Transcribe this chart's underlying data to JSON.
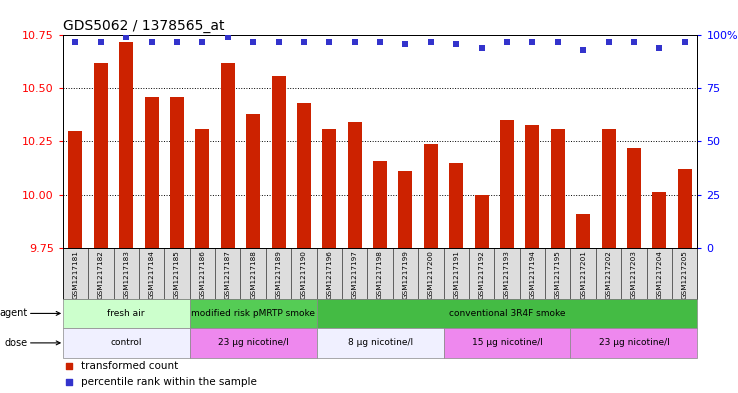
{
  "title": "GDS5062 / 1378565_at",
  "samples": [
    "GSM1217181",
    "GSM1217182",
    "GSM1217183",
    "GSM1217184",
    "GSM1217185",
    "GSM1217186",
    "GSM1217187",
    "GSM1217188",
    "GSM1217189",
    "GSM1217190",
    "GSM1217196",
    "GSM1217197",
    "GSM1217198",
    "GSM1217199",
    "GSM1217200",
    "GSM1217191",
    "GSM1217192",
    "GSM1217193",
    "GSM1217194",
    "GSM1217195",
    "GSM1217201",
    "GSM1217202",
    "GSM1217203",
    "GSM1217204",
    "GSM1217205"
  ],
  "transformed_counts": [
    10.3,
    10.62,
    10.72,
    10.46,
    10.46,
    10.31,
    10.62,
    10.38,
    10.56,
    10.43,
    10.31,
    10.34,
    10.16,
    10.11,
    10.24,
    10.15,
    10.0,
    10.35,
    10.33,
    10.31,
    9.91,
    10.31,
    10.22,
    10.01,
    10.12
  ],
  "percentile_ranks": [
    97,
    97,
    99,
    97,
    97,
    97,
    99,
    97,
    97,
    97,
    97,
    97,
    97,
    96,
    97,
    96,
    94,
    97,
    97,
    97,
    93,
    97,
    97,
    94,
    97
  ],
  "ylim_left": [
    9.75,
    10.75
  ],
  "ylim_right": [
    0,
    100
  ],
  "yticks_left": [
    9.75,
    10.0,
    10.25,
    10.5,
    10.75
  ],
  "yticks_right": [
    0,
    25,
    50,
    75,
    100
  ],
  "ytick_labels_right": [
    "0",
    "25",
    "50",
    "75",
    "100%"
  ],
  "bar_color": "#cc2200",
  "dot_color": "#3333cc",
  "agent_groups": [
    {
      "label": "fresh air",
      "start": 0,
      "end": 5,
      "color": "#ccffcc"
    },
    {
      "label": "modified risk pMRTP smoke",
      "start": 5,
      "end": 10,
      "color": "#55cc55"
    },
    {
      "label": "conventional 3R4F smoke",
      "start": 10,
      "end": 25,
      "color": "#44bb44"
    }
  ],
  "dose_groups": [
    {
      "label": "control",
      "start": 0,
      "end": 5,
      "color": "#f0f0ff"
    },
    {
      "label": "23 μg nicotine/l",
      "start": 5,
      "end": 10,
      "color": "#ee88ee"
    },
    {
      "label": "8 μg nicotine/l",
      "start": 10,
      "end": 15,
      "color": "#f0f0ff"
    },
    {
      "label": "15 μg nicotine/l",
      "start": 15,
      "end": 20,
      "color": "#ee88ee"
    },
    {
      "label": "23 μg nicotine/l",
      "start": 20,
      "end": 25,
      "color": "#ee88ee"
    }
  ],
  "legend_items": [
    {
      "label": "transformed count",
      "color": "#cc2200"
    },
    {
      "label": "percentile rank within the sample",
      "color": "#3333cc"
    }
  ],
  "grid_color": "#000000",
  "plot_bg": "#ffffff",
  "xtick_bg": "#dddddd",
  "title_fontsize": 10,
  "bar_width": 0.55
}
